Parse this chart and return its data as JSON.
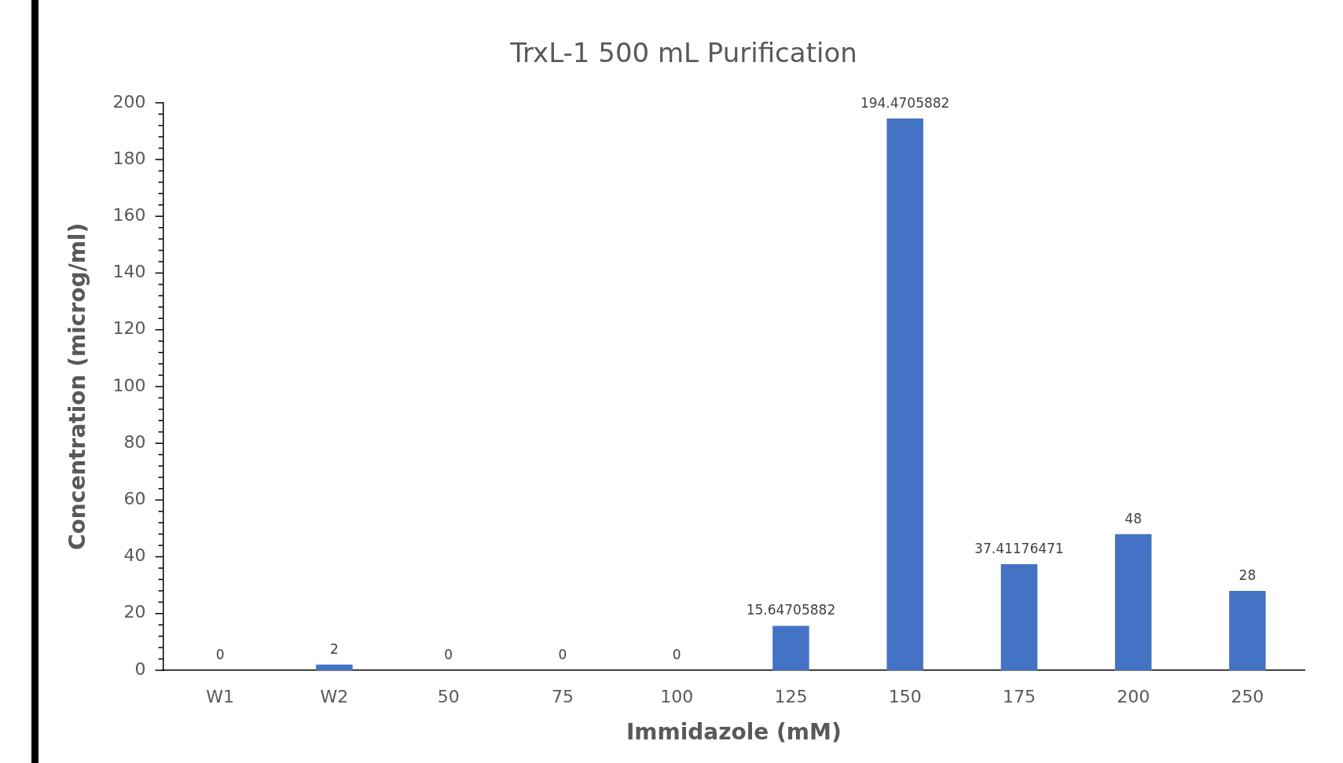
{
  "chart_data": {
    "type": "bar",
    "title": "TrxL-1 500 mL Purification",
    "xlabel": "Immidazole (mM)",
    "ylabel": "Concentration (microg/ml)",
    "categories": [
      "W1",
      "W2",
      "50",
      "75",
      "100",
      "125",
      "150",
      "175",
      "200",
      "250"
    ],
    "values": [
      0,
      2,
      0,
      0,
      0,
      15.64705882,
      194.4705882,
      37.41176471,
      48,
      28
    ],
    "color": "#4472c4",
    "data_labels": true,
    "grid": false,
    "legend": false,
    "ylim": [
      0,
      200
    ],
    "yticks": [
      0,
      {
        "value": 4,
        "label": null
      },
      {
        "value": 8,
        "label": null
      },
      {
        "value": 12,
        "label": null
      },
      {
        "value": 16,
        "label": null
      },
      20,
      {
        "value": 24,
        "label": null
      },
      {
        "value": 28,
        "label": null
      },
      {
        "value": 32,
        "label": null
      },
      {
        "value": 36,
        "label": null
      },
      40,
      {
        "value": 44,
        "label": null
      },
      {
        "value": 48,
        "label": null
      },
      {
        "value": 52,
        "label": null
      },
      {
        "value": 56,
        "label": null
      },
      60,
      {
        "value": 64,
        "label": null
      },
      {
        "value": 68,
        "label": null
      },
      {
        "value": 72,
        "label": null
      },
      {
        "value": 76,
        "label": null
      },
      80,
      {
        "value": 84,
        "label": null
      },
      {
        "value": 88,
        "label": null
      },
      {
        "value": 92,
        "label": null
      },
      {
        "value": 96,
        "label": null
      },
      100,
      {
        "value": 104,
        "label": null
      },
      {
        "value": 108,
        "label": null
      },
      {
        "value": 112,
        "label": null
      },
      {
        "value": 116,
        "label": null
      },
      120,
      {
        "value": 124,
        "label": null
      },
      {
        "value": 128,
        "label": null
      },
      {
        "value": 132,
        "label": null
      },
      {
        "value": 136,
        "label": null
      },
      140,
      {
        "value": 144,
        "label": null
      },
      {
        "value": 148,
        "label": null
      },
      {
        "value": 152,
        "label": null
      },
      {
        "value": 156,
        "label": null
      },
      160,
      {
        "value": 164,
        "label": null
      },
      {
        "value": 168,
        "label": null
      },
      {
        "value": 172,
        "label": null
      },
      {
        "value": 176,
        "label": null
      },
      180,
      {
        "value": 184,
        "label": null
      },
      {
        "value": 188,
        "label": null
      },
      {
        "value": 192,
        "label": null
      },
      {
        "value": 196,
        "label": null
      },
      200
    ]
  }
}
